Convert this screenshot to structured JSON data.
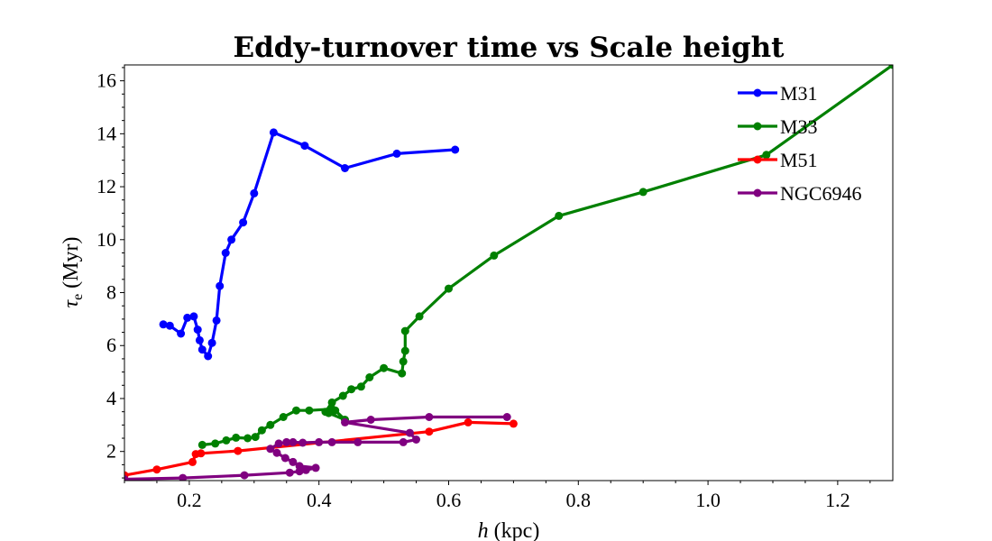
{
  "chart_data": {
    "type": "line",
    "title": "Eddy-turnover time vs Scale height",
    "xlabel_var": "h",
    "xlabel_unit": " (kpc)",
    "ylabel_var": "τ",
    "ylabel_sub": "e",
    "ylabel_unit": " (Myr)",
    "xlim": [
      0.1,
      1.285
    ],
    "ylim": [
      0.9,
      16.6
    ],
    "xticks": [
      0.2,
      0.4,
      0.6,
      0.8,
      1.0,
      1.2
    ],
    "xtick_labels": [
      "0.2",
      "0.4",
      "0.6",
      "0.8",
      "1.0",
      "1.2"
    ],
    "yticks": [
      2,
      4,
      6,
      8,
      10,
      12,
      14,
      16
    ],
    "ytick_labels": [
      "2",
      "4",
      "6",
      "8",
      "10",
      "12",
      "14",
      "16"
    ],
    "legend_position": "top-right",
    "series": [
      {
        "name": "M31",
        "color": "#0000ff",
        "x": [
          0.16,
          0.17,
          0.187,
          0.197,
          0.207,
          0.213,
          0.216,
          0.22,
          0.229,
          0.235,
          0.242,
          0.247,
          0.256,
          0.265,
          0.283,
          0.3,
          0.33,
          0.378,
          0.44,
          0.52,
          0.61
        ],
        "y": [
          6.8,
          6.75,
          6.45,
          7.05,
          7.1,
          6.6,
          6.2,
          5.85,
          5.6,
          6.1,
          6.95,
          8.25,
          9.5,
          10.0,
          10.65,
          11.75,
          14.05,
          13.55,
          12.7,
          13.25,
          13.4
        ]
      },
      {
        "name": "M33",
        "color": "#008000",
        "x": [
          0.22,
          0.24,
          0.257,
          0.272,
          0.29,
          0.302,
          0.312,
          0.325,
          0.345,
          0.365,
          0.385,
          0.42,
          0.415,
          0.42,
          0.425,
          0.44,
          0.41,
          0.42,
          0.437,
          0.45,
          0.465,
          0.478,
          0.5,
          0.528,
          0.53,
          0.533,
          0.533,
          0.555,
          0.6,
          0.67,
          0.77,
          0.9,
          1.09,
          1.285
        ],
        "y": [
          2.25,
          2.3,
          2.42,
          2.52,
          2.5,
          2.55,
          2.8,
          3.0,
          3.3,
          3.55,
          3.55,
          3.6,
          3.45,
          3.6,
          3.55,
          3.2,
          3.5,
          3.85,
          4.1,
          4.35,
          4.45,
          4.8,
          5.15,
          4.95,
          5.4,
          5.8,
          6.55,
          7.1,
          8.15,
          9.4,
          10.9,
          11.8,
          13.2,
          16.6
        ]
      },
      {
        "name": "M51",
        "color": "#ff0000",
        "x": [
          0.1,
          0.15,
          0.205,
          0.21,
          0.218,
          0.275,
          0.57,
          0.63,
          0.7
        ],
        "y": [
          1.1,
          1.32,
          1.6,
          1.9,
          1.93,
          2.02,
          2.75,
          3.1,
          3.05
        ]
      },
      {
        "name": "NGC6946",
        "color": "#800080",
        "x": [
          0.1,
          0.19,
          0.285,
          0.355,
          0.37,
          0.38,
          0.395,
          0.37,
          0.36,
          0.348,
          0.335,
          0.325,
          0.338,
          0.35,
          0.36,
          0.375,
          0.4,
          0.42,
          0.46,
          0.53,
          0.55,
          0.54,
          0.44,
          0.48,
          0.57,
          0.69
        ],
        "y": [
          0.95,
          1.0,
          1.1,
          1.2,
          1.25,
          1.3,
          1.38,
          1.45,
          1.6,
          1.75,
          1.95,
          2.1,
          2.3,
          2.35,
          2.35,
          2.33,
          2.35,
          2.35,
          2.35,
          2.35,
          2.45,
          2.7,
          3.1,
          3.2,
          3.3,
          3.3
        ]
      }
    ]
  }
}
